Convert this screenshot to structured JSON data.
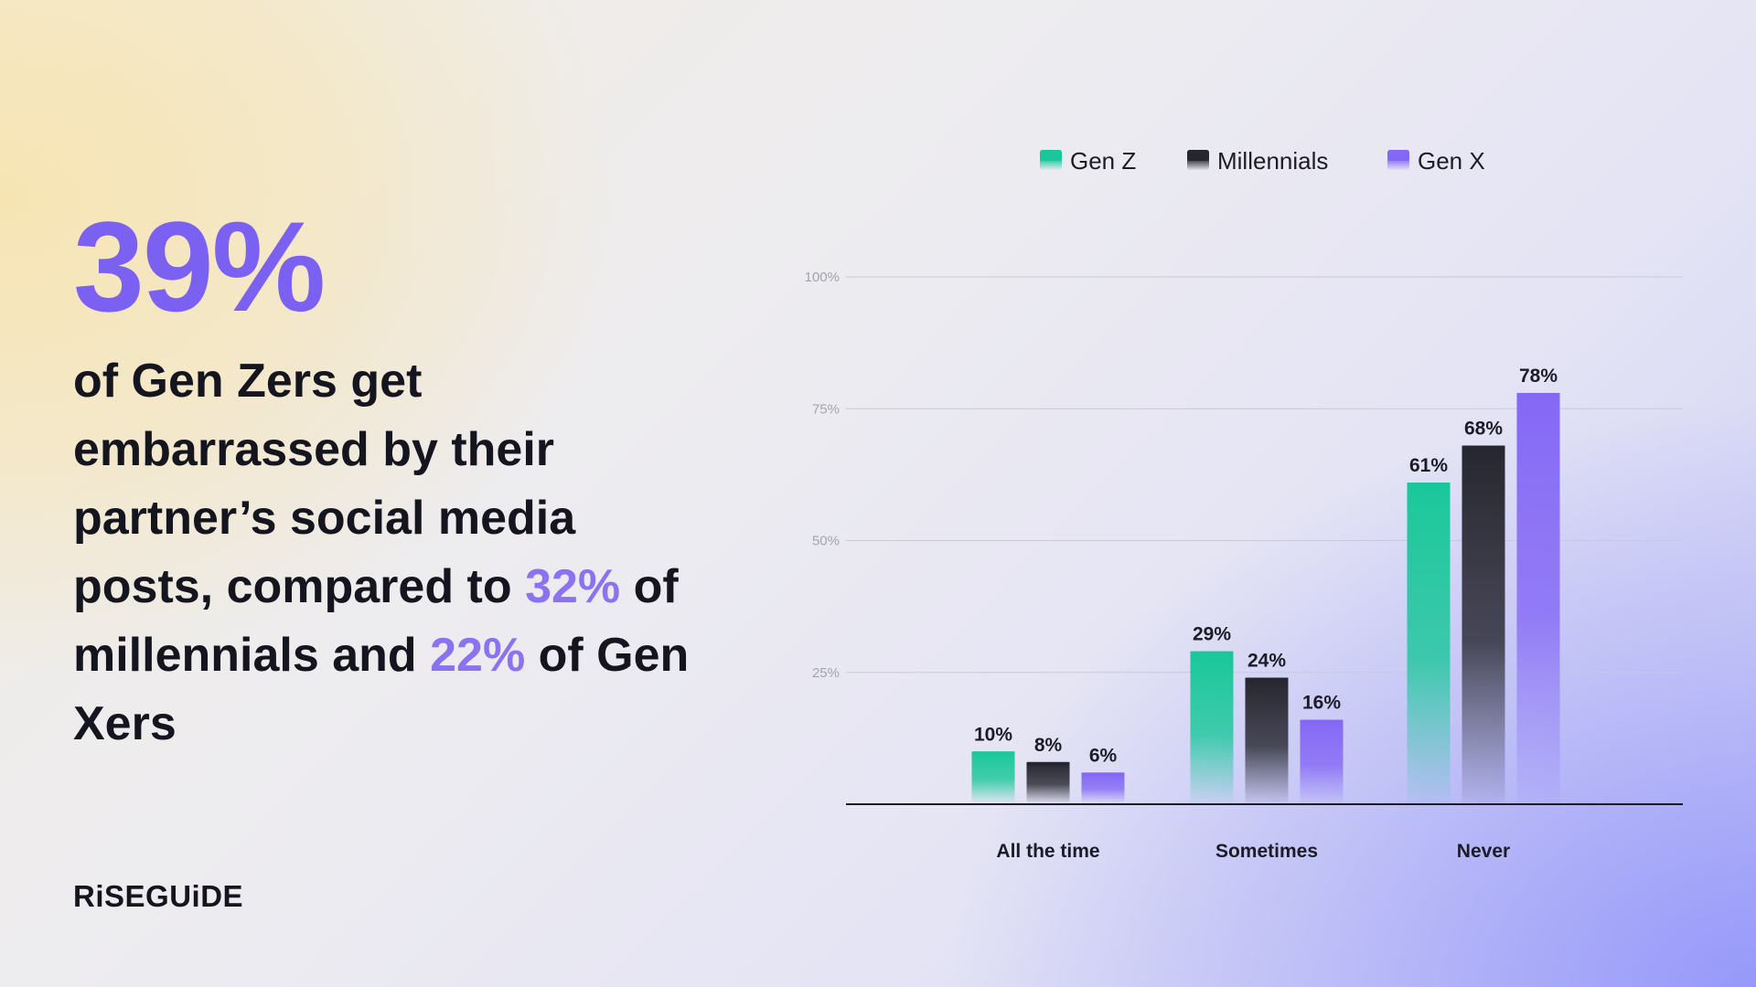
{
  "headline": {
    "big_stat": "39%",
    "text_part1": "of Gen Zers get embarrassed by their partner’s social media posts, compared to ",
    "highlight1": "32%",
    "text_part2": " of millennials and ",
    "highlight2": "22%",
    "text_part3": " of Gen Xers"
  },
  "brand": {
    "logo_text": "RiSEGUiDE"
  },
  "colors": {
    "accent": "#7b61f2",
    "gen_z": "#19c79a",
    "millennials": "#262630",
    "gen_x": "#8468f5"
  },
  "chart_data": {
    "type": "bar",
    "categories": [
      "All the time",
      "Sometimes",
      "Never"
    ],
    "series": [
      {
        "name": "Gen Z",
        "values": [
          10,
          29,
          61
        ],
        "labels": [
          "10%",
          "29%",
          "61%"
        ]
      },
      {
        "name": "Millennials",
        "values": [
          8,
          24,
          68
        ],
        "labels": [
          "8%",
          "24%",
          "68%"
        ]
      },
      {
        "name": "Gen X",
        "values": [
          6,
          16,
          78
        ],
        "labels": [
          "6%",
          "16%",
          "78%"
        ]
      }
    ],
    "yticks": [
      25,
      50,
      75,
      100
    ],
    "ytick_labels": [
      "25%",
      "50%",
      "75%",
      "100%"
    ],
    "ylim": [
      0,
      100
    ],
    "grid": true,
    "legend": "top"
  }
}
